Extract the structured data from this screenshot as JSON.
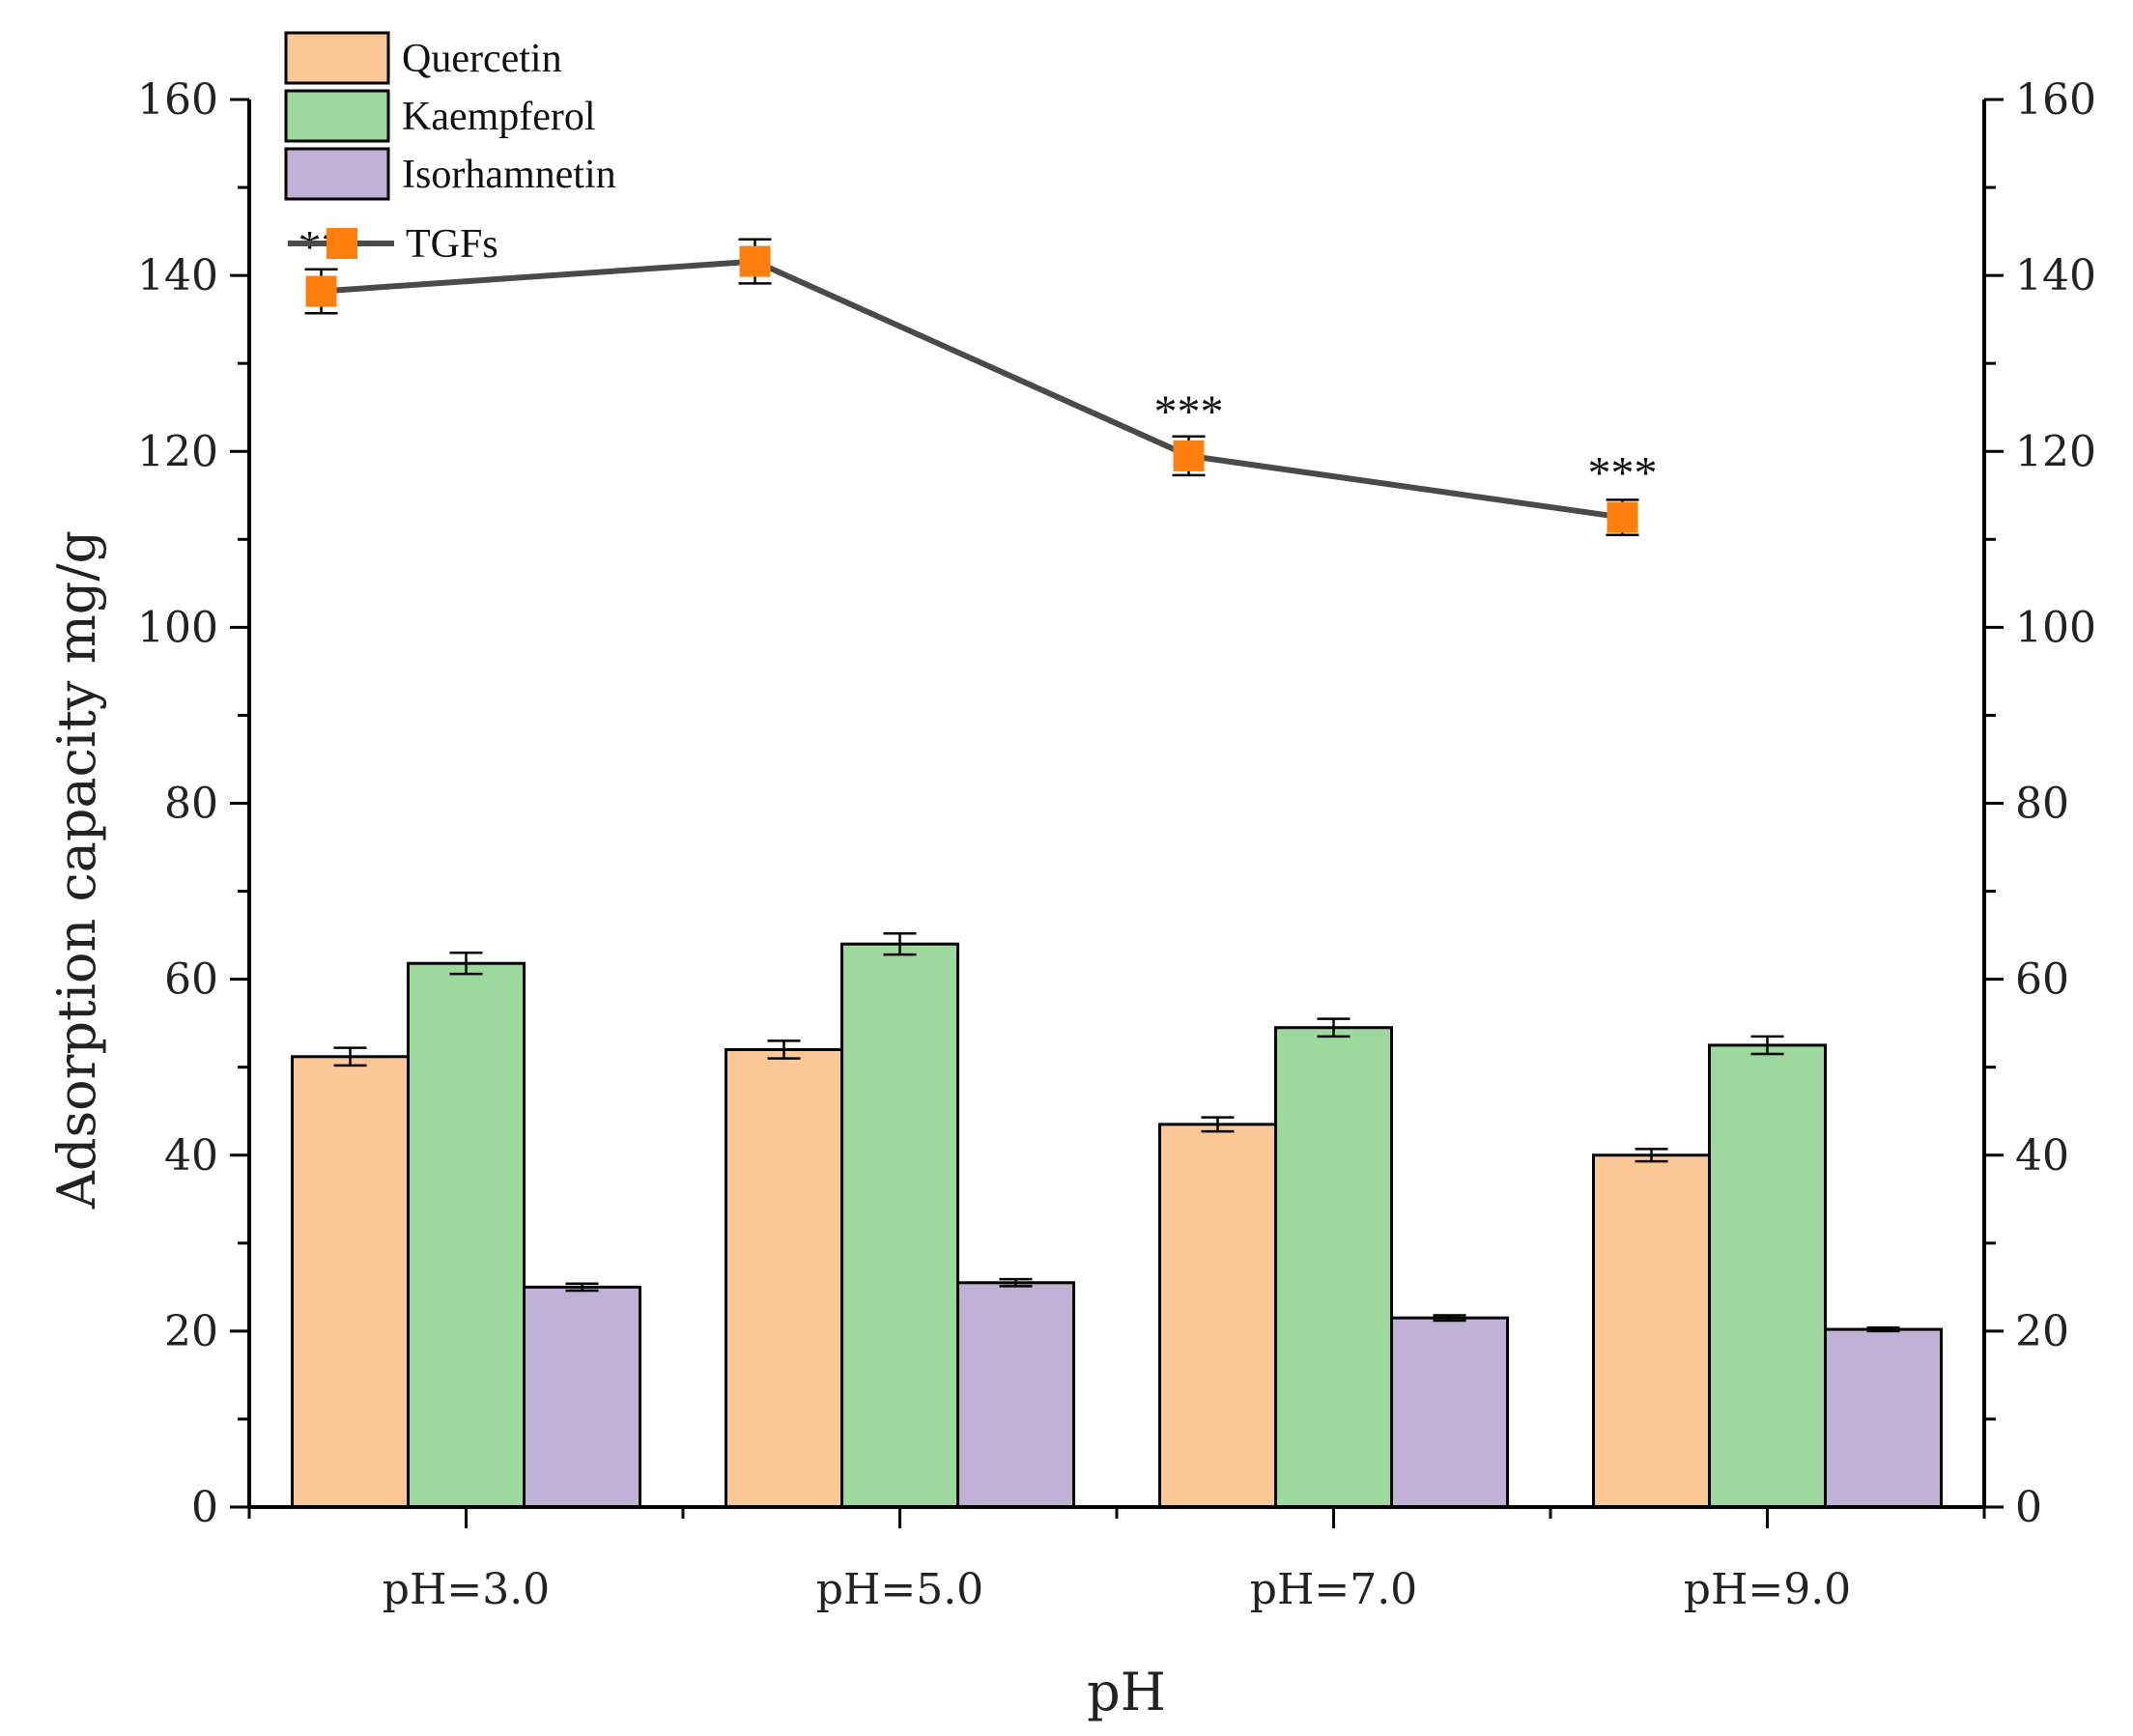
{
  "chart_data": {
    "type": "bar",
    "title": "",
    "xlabel": "pH",
    "ylabel": "Adsorption capacity mg/g",
    "categories": [
      "pH=3.0",
      "pH=5.0",
      "pH=7.0",
      "pH=9.0"
    ],
    "ylim": [
      0,
      160
    ],
    "y_ticks": [
      "0",
      "20",
      "40",
      "60",
      "80",
      "100",
      "120",
      "140",
      "160"
    ],
    "right_axis_ticks": [
      "0",
      "20",
      "40",
      "60",
      "80",
      "100",
      "120",
      "140",
      "160"
    ],
    "legend_position": "top-left",
    "series": [
      {
        "name": "Quercetin",
        "kind": "bar",
        "color": "#FBC795",
        "values": [
          51.2,
          52.0,
          43.5,
          40.0
        ],
        "errors": [
          1.0,
          1.0,
          0.8,
          0.7
        ]
      },
      {
        "name": "Kaempferol",
        "kind": "bar",
        "color": "#9DD89C",
        "values": [
          61.8,
          64.0,
          54.5,
          52.5
        ],
        "errors": [
          1.2,
          1.2,
          1.0,
          1.0
        ]
      },
      {
        "name": "Isorhamnetin",
        "kind": "bar",
        "color": "#C1B1D7",
        "values": [
          25.0,
          25.5,
          21.5,
          20.2
        ],
        "errors": [
          0.4,
          0.4,
          0.3,
          0.2
        ]
      },
      {
        "name": "TGFs",
        "kind": "line",
        "color": "#FF7F0E",
        "line_color": "#4a4a4a",
        "values": [
          138.2,
          141.6,
          119.5,
          112.5
        ],
        "errors": [
          2.5,
          2.5,
          2.2,
          2.0
        ]
      }
    ],
    "annotations": [
      "**",
      "",
      "***",
      "***"
    ]
  }
}
